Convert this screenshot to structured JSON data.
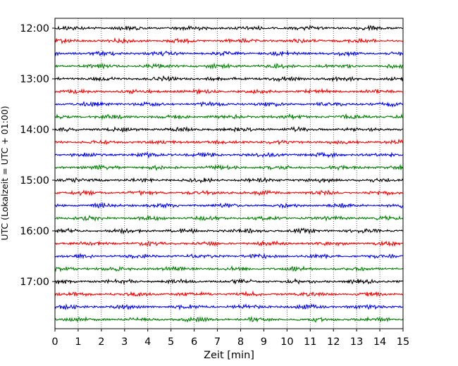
{
  "chart_data": {
    "type": "line",
    "title": "",
    "xlabel": "Zeit  [min]",
    "ylabel": "UTC (Lokalzeit = UTC + 01:00)",
    "xlim": [
      0,
      15
    ],
    "x_ticks": [
      0,
      1,
      2,
      3,
      4,
      5,
      6,
      7,
      8,
      9,
      10,
      11,
      12,
      13,
      14,
      15
    ],
    "y_ticks": [
      "12:00",
      "13:00",
      "14:00",
      "15:00",
      "16:00",
      "17:00"
    ],
    "trace_interval_minutes": 15,
    "first_trace": "12:00",
    "trace_count": 24,
    "vertical_grid": "dotted at every minute",
    "trace_colors": [
      "#000000",
      "#ff0000",
      "#0000ff",
      "#008000"
    ]
  }
}
